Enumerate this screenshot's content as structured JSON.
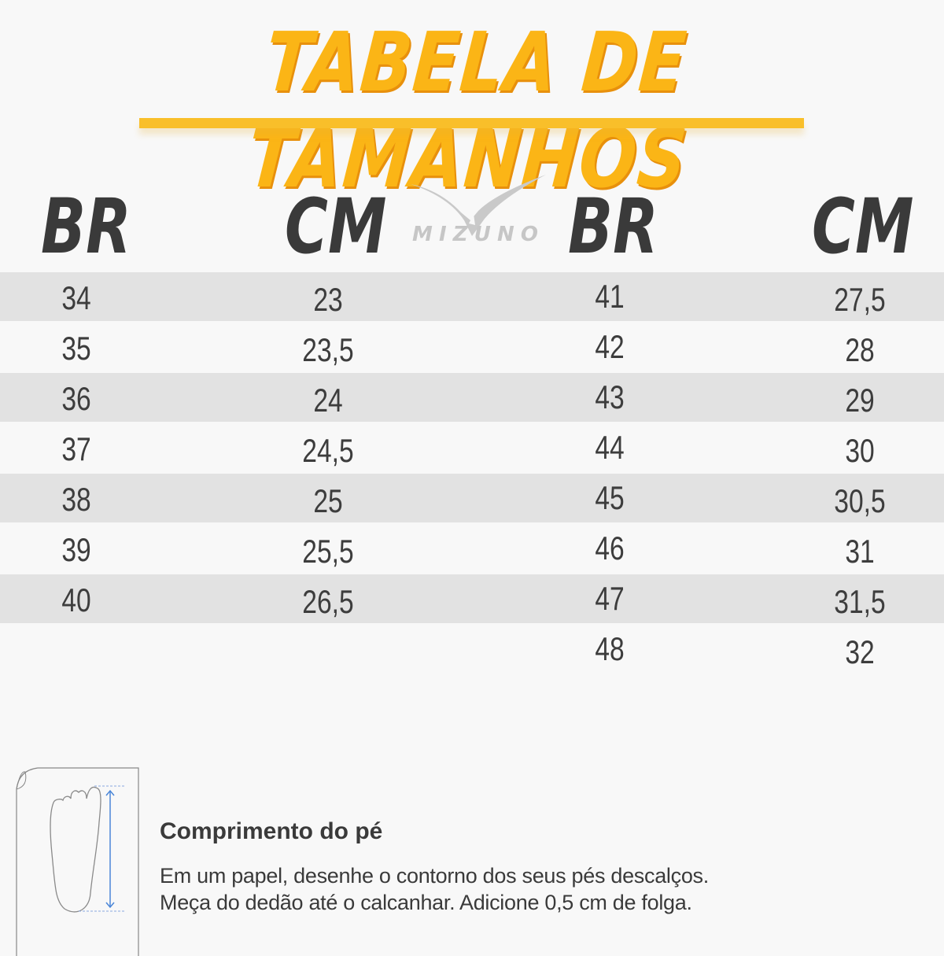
{
  "title": "TABELA DE TAMANHOS",
  "brand": "MIZUNO",
  "colors": {
    "title": "#fbb516",
    "band": "#e2e2e2",
    "text": "#3b3b3b",
    "arrow": "#4a86d8"
  },
  "headers": {
    "br_left": "BR",
    "cm_left": "CM",
    "br_right": "BR",
    "cm_right": "CM"
  },
  "left_rows": [
    [
      "34",
      "23"
    ],
    [
      "35",
      "23,5"
    ],
    [
      "36",
      "24"
    ],
    [
      "37",
      "24,5"
    ],
    [
      "38",
      "25"
    ],
    [
      "39",
      "25,5"
    ],
    [
      "40",
      "26,5"
    ]
  ],
  "right_rows": [
    [
      "41",
      "27,5"
    ],
    [
      "42",
      "28"
    ],
    [
      "43",
      "29"
    ],
    [
      "44",
      "30"
    ],
    [
      "45",
      "30,5"
    ],
    [
      "46",
      "31"
    ],
    [
      "47",
      "31,5"
    ],
    [
      "48",
      "32"
    ]
  ],
  "howto": {
    "title": "Comprimento do pé",
    "line1": "Em um papel, desenhe o contorno dos seus pés descalços.",
    "line2": "Meça do dedão até o calcanhar. Adicione 0,5 cm de folga."
  },
  "icons": {
    "paper": "paper-foot-icon",
    "arrow": "measure-arrow-icon"
  }
}
